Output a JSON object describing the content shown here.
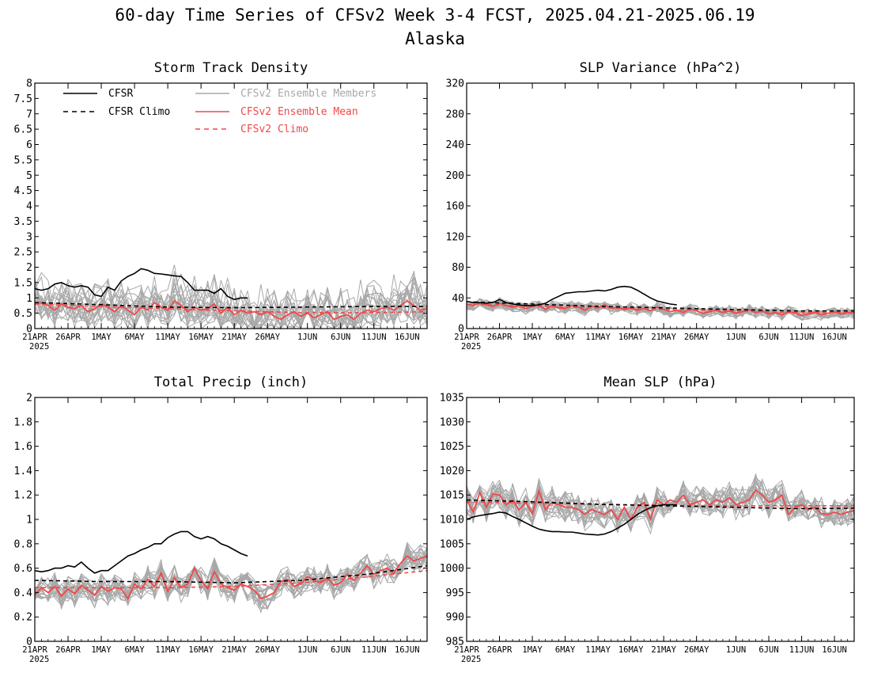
{
  "figure": {
    "title": "60-day Time Series of CFSv2 Week 3-4 FCST, 2025.04.21-2025.06.19",
    "subtitle": "Alaska"
  },
  "colors": {
    "cfsr": "#000000",
    "cfsr_climo": "#000000",
    "members": "#a8a8a8",
    "ensemble_mean": "#f04848",
    "cfsv2_climo": "#f04848"
  },
  "legend": [
    {
      "key": "cfsr",
      "label": "CFSR",
      "style": "solid",
      "color": "#000000"
    },
    {
      "key": "cfsr_climo",
      "label": "CFSR Climo",
      "style": "dashed",
      "color": "#000000"
    },
    {
      "key": "members",
      "label": "CFSv2 Ensemble Members",
      "style": "solid",
      "color": "#a8a8a8"
    },
    {
      "key": "ensemble_mean",
      "label": "CFSv2 Ensemble Mean",
      "style": "solid",
      "color": "#f04848"
    },
    {
      "key": "cfsv2_climo",
      "label": "CFSv2 Climo",
      "style": "dashed",
      "color": "#f04848"
    }
  ],
  "x_ticks": {
    "day_index": [
      0,
      5,
      10,
      15,
      20,
      25,
      30,
      35,
      41,
      46,
      51,
      56
    ],
    "labels": [
      "21APR",
      "26APR",
      "1MAY",
      "6MAY",
      "11MAY",
      "16MAY",
      "21MAY",
      "26MAY",
      "1JUN",
      "6JUN",
      "11JUN",
      "16JUN"
    ],
    "year_label": "2025"
  },
  "chart_data": [
    {
      "type": "line",
      "title": "Storm Track Density",
      "ylim": [
        0,
        8
      ],
      "yticks": [
        "0",
        "0.5",
        "1",
        "1.5",
        "2",
        "2.5",
        "3",
        "3.5",
        "4",
        "4.5",
        "5",
        "5.5",
        "6",
        "6.5",
        "7",
        "7.5",
        "8"
      ],
      "grid": false,
      "legend_placement": "top-left",
      "series": {
        "cfsr": {
          "x": [
            0,
            1,
            2,
            3,
            4,
            5,
            6,
            7,
            8,
            9,
            10,
            11,
            12,
            13,
            14,
            15,
            16,
            17,
            18,
            19,
            20,
            21,
            22,
            23,
            24,
            25,
            26,
            27,
            28,
            29,
            30,
            31,
            32
          ],
          "values": [
            1.3,
            1.25,
            1.3,
            1.45,
            1.5,
            1.4,
            1.35,
            1.4,
            1.35,
            1.1,
            1.05,
            1.35,
            1.25,
            1.55,
            1.7,
            1.8,
            1.95,
            1.9,
            1.8,
            1.78,
            1.75,
            1.72,
            1.7,
            1.5,
            1.25,
            1.25,
            1.25,
            1.15,
            1.3,
            1.05,
            0.95,
            1.0,
            1.0
          ]
        },
        "cfsr_climo": {
          "x": [
            0,
            10,
            20,
            30,
            40,
            50,
            59
          ],
          "values": [
            0.85,
            0.78,
            0.7,
            0.68,
            0.7,
            0.72,
            0.72
          ]
        },
        "ensemble_mean": {
          "x": [
            0,
            1,
            2,
            3,
            4,
            5,
            6,
            7,
            8,
            9,
            10,
            11,
            12,
            13,
            14,
            15,
            16,
            17,
            18,
            19,
            20,
            21,
            22,
            23,
            24,
            25,
            26,
            27,
            28,
            29,
            30,
            31,
            32,
            33,
            34,
            35,
            36,
            37,
            38,
            39,
            40,
            41,
            42,
            43,
            44,
            45,
            46,
            47,
            48,
            49,
            50,
            51,
            52,
            53,
            54,
            55,
            56,
            57,
            58,
            59
          ],
          "values": [
            0.8,
            0.85,
            0.75,
            0.6,
            0.8,
            0.7,
            0.65,
            0.75,
            0.55,
            0.65,
            0.8,
            0.7,
            0.55,
            0.75,
            0.6,
            0.45,
            0.7,
            0.6,
            0.85,
            0.7,
            0.6,
            0.9,
            0.75,
            0.55,
            0.7,
            0.6,
            0.65,
            0.8,
            0.5,
            0.7,
            0.45,
            0.6,
            0.5,
            0.55,
            0.45,
            0.55,
            0.4,
            0.3,
            0.45,
            0.55,
            0.4,
            0.5,
            0.35,
            0.45,
            0.55,
            0.3,
            0.4,
            0.45,
            0.3,
            0.5,
            0.6,
            0.55,
            0.65,
            0.7,
            0.6,
            0.75,
            0.9,
            0.75,
            0.6,
            0.65
          ]
        },
        "cfsv2_climo": {
          "x": [
            0,
            10,
            20,
            30,
            40,
            50,
            59
          ],
          "values": [
            0.8,
            0.72,
            0.65,
            0.58,
            0.52,
            0.52,
            0.55
          ]
        }
      }
    },
    {
      "type": "line",
      "title": "SLP Variance (hPa^2)",
      "ylim": [
        0,
        320
      ],
      "yticks": [
        "0",
        "40",
        "80",
        "120",
        "160",
        "200",
        "240",
        "280",
        "320"
      ],
      "grid": false,
      "series": {
        "cfsr": {
          "x": [
            0,
            1,
            2,
            3,
            4,
            5,
            6,
            7,
            8,
            9,
            10,
            11,
            12,
            13,
            14,
            15,
            16,
            17,
            18,
            19,
            20,
            21,
            22,
            23,
            24,
            25,
            26,
            27,
            28,
            29,
            30,
            31,
            32
          ],
          "values": [
            35,
            34,
            34,
            33,
            34,
            38,
            34,
            32,
            31,
            30,
            30,
            31,
            33,
            38,
            42,
            46,
            47,
            48,
            48,
            49,
            50,
            49,
            51,
            54,
            55,
            54,
            50,
            45,
            40,
            36,
            34,
            32,
            31
          ]
        },
        "cfsr_climo": {
          "x": [
            0,
            10,
            20,
            30,
            40,
            50,
            59
          ],
          "values": [
            35,
            32,
            29,
            27,
            25,
            23,
            23
          ]
        },
        "ensemble_mean": {
          "x": [
            0,
            1,
            2,
            3,
            4,
            5,
            6,
            7,
            8,
            9,
            10,
            11,
            12,
            13,
            14,
            15,
            16,
            17,
            18,
            19,
            20,
            21,
            22,
            23,
            24,
            25,
            26,
            27,
            28,
            29,
            30,
            31,
            32,
            33,
            34,
            35,
            36,
            37,
            38,
            39,
            40,
            41,
            42,
            43,
            44,
            45,
            46,
            47,
            48,
            49,
            50,
            51,
            52,
            53,
            54,
            55,
            56,
            57,
            58,
            59
          ],
          "values": [
            32,
            30,
            33,
            31,
            29,
            33,
            30,
            28,
            30,
            26,
            29,
            31,
            25,
            30,
            27,
            26,
            30,
            28,
            24,
            29,
            27,
            31,
            26,
            28,
            25,
            27,
            24,
            26,
            23,
            28,
            25,
            22,
            24,
            21,
            26,
            23,
            20,
            22,
            24,
            21,
            23,
            20,
            22,
            25,
            21,
            23,
            19,
            21,
            18,
            22,
            20,
            17,
            19,
            21,
            18,
            20,
            22,
            19,
            21,
            20
          ]
        },
        "cfsv2_climo": {
          "x": [
            0,
            10,
            20,
            30,
            40,
            50,
            59
          ],
          "values": [
            32,
            29,
            27,
            25,
            23,
            21,
            21
          ]
        }
      }
    },
    {
      "type": "line",
      "title": "Total Precip (inch)",
      "ylim": [
        0,
        2
      ],
      "yticks": [
        "0",
        "0.2",
        "0.4",
        "0.6",
        "0.8",
        "1",
        "1.2",
        "1.4",
        "1.6",
        "1.8",
        "2"
      ],
      "grid": false,
      "series": {
        "cfsr": {
          "x": [
            0,
            1,
            2,
            3,
            4,
            5,
            6,
            7,
            8,
            9,
            10,
            11,
            12,
            13,
            14,
            15,
            16,
            17,
            18,
            19,
            20,
            21,
            22,
            23,
            24,
            25,
            26,
            27,
            28,
            29,
            30,
            31,
            32
          ],
          "values": [
            0.58,
            0.57,
            0.58,
            0.6,
            0.6,
            0.62,
            0.61,
            0.65,
            0.6,
            0.56,
            0.58,
            0.58,
            0.62,
            0.66,
            0.7,
            0.72,
            0.75,
            0.77,
            0.8,
            0.8,
            0.85,
            0.88,
            0.9,
            0.9,
            0.86,
            0.84,
            0.86,
            0.84,
            0.8,
            0.78,
            0.75,
            0.72,
            0.7
          ]
        },
        "cfsr_climo": {
          "x": [
            0,
            10,
            20,
            30,
            40,
            50,
            59
          ],
          "values": [
            0.5,
            0.49,
            0.49,
            0.48,
            0.5,
            0.55,
            0.62
          ]
        },
        "ensemble_mean": {
          "x": [
            0,
            1,
            2,
            3,
            4,
            5,
            6,
            7,
            8,
            9,
            10,
            11,
            12,
            13,
            14,
            15,
            16,
            17,
            18,
            19,
            20,
            21,
            22,
            23,
            24,
            25,
            26,
            27,
            28,
            29,
            30,
            31,
            32,
            33,
            34,
            35,
            36,
            37,
            38,
            39,
            40,
            41,
            42,
            43,
            44,
            45,
            46,
            47,
            48,
            49,
            50,
            51,
            52,
            53,
            54,
            55,
            56,
            57,
            58,
            59
          ],
          "values": [
            0.38,
            0.44,
            0.4,
            0.45,
            0.37,
            0.43,
            0.39,
            0.46,
            0.42,
            0.38,
            0.45,
            0.41,
            0.44,
            0.43,
            0.35,
            0.47,
            0.43,
            0.51,
            0.45,
            0.56,
            0.41,
            0.52,
            0.44,
            0.47,
            0.6,
            0.5,
            0.43,
            0.57,
            0.47,
            0.44,
            0.42,
            0.47,
            0.45,
            0.42,
            0.35,
            0.37,
            0.4,
            0.49,
            0.51,
            0.45,
            0.47,
            0.53,
            0.5,
            0.48,
            0.52,
            0.46,
            0.48,
            0.55,
            0.5,
            0.56,
            0.62,
            0.55,
            0.58,
            0.6,
            0.56,
            0.64,
            0.7,
            0.66,
            0.68,
            0.7
          ]
        },
        "cfsv2_climo": {
          "x": [
            0,
            10,
            20,
            30,
            40,
            50,
            59
          ],
          "values": [
            0.44,
            0.44,
            0.44,
            0.45,
            0.48,
            0.53,
            0.58
          ]
        }
      }
    },
    {
      "type": "line",
      "title": "Mean SLP (hPa)",
      "ylim": [
        985,
        1035
      ],
      "yticks": [
        "985",
        "990",
        "995",
        "1000",
        "1005",
        "1010",
        "1015",
        "1020",
        "1025",
        "1030",
        "1035"
      ],
      "grid": false,
      "series": {
        "cfsr": {
          "x": [
            0,
            1,
            2,
            3,
            4,
            5,
            6,
            7,
            8,
            9,
            10,
            11,
            12,
            13,
            14,
            15,
            16,
            17,
            18,
            19,
            20,
            21,
            22,
            23,
            24,
            25,
            26,
            27,
            28,
            29,
            30,
            31,
            32
          ],
          "values": [
            1010,
            1010.5,
            1010.8,
            1011,
            1011.2,
            1011.5,
            1011.3,
            1010.6,
            1010,
            1009.3,
            1008.6,
            1008,
            1007.7,
            1007.5,
            1007.5,
            1007.4,
            1007.4,
            1007.2,
            1007,
            1006.9,
            1006.8,
            1007,
            1007.5,
            1008.2,
            1009,
            1010,
            1011,
            1011.8,
            1012.4,
            1012.8,
            1013,
            1013,
            1013
          ]
        },
        "cfsr_climo": {
          "x": [
            0,
            10,
            20,
            30,
            40,
            50,
            59
          ],
          "values": [
            1014,
            1013.6,
            1013.1,
            1012.8,
            1012.5,
            1012.2,
            1012.3
          ]
        },
        "ensemble_mean": {
          "x": [
            0,
            1,
            2,
            3,
            4,
            5,
            6,
            7,
            8,
            9,
            10,
            11,
            12,
            13,
            14,
            15,
            16,
            17,
            18,
            19,
            20,
            21,
            22,
            23,
            24,
            25,
            26,
            27,
            28,
            29,
            30,
            31,
            32,
            33,
            34,
            35,
            36,
            37,
            38,
            39,
            40,
            41,
            42,
            43,
            44,
            45,
            46,
            47,
            48,
            49,
            50,
            51,
            52,
            53,
            54,
            55,
            56,
            57,
            58,
            59
          ],
          "values": [
            1014,
            1011.5,
            1015.5,
            1012.5,
            1015.2,
            1015,
            1013,
            1014,
            1012,
            1013.5,
            1011.2,
            1015.8,
            1012,
            1013.5,
            1013,
            1012.5,
            1012.5,
            1012,
            1011,
            1012,
            1011.5,
            1011,
            1012,
            1010,
            1012.5,
            1010,
            1012.5,
            1013.5,
            1010,
            1014,
            1013,
            1014,
            1013.5,
            1015,
            1013,
            1013.5,
            1014,
            1013,
            1014,
            1013.5,
            1014.5,
            1013,
            1013.5,
            1014,
            1016,
            1015,
            1013.5,
            1014,
            1015,
            1011,
            1012.5,
            1013,
            1012,
            1012.5,
            1011.2,
            1011,
            1011.5,
            1011,
            1011.5,
            1011.8
          ]
        },
        "cfsv2_climo": {
          "x": [
            0,
            10,
            20,
            30,
            40,
            50,
            59
          ],
          "values": [
            1013.6,
            1013.3,
            1013.1,
            1012.9,
            1012.8,
            1012.8,
            1012.8
          ]
        }
      }
    }
  ]
}
